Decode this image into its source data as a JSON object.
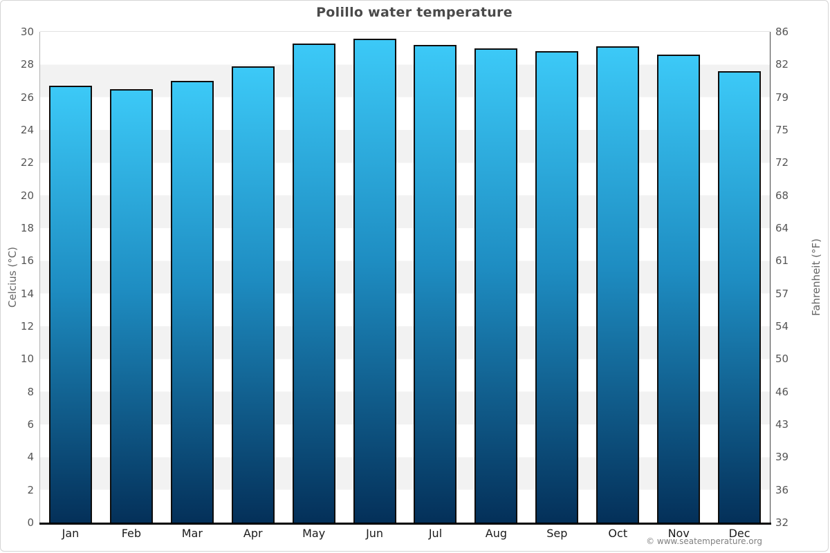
{
  "chart_data": {
    "type": "bar",
    "title": "Polillo water temperature",
    "xlabel": "",
    "ylabel_left": "Celcius (°C)",
    "ylabel_right": "Fahrenheit (°F)",
    "categories": [
      "Jan",
      "Feb",
      "Mar",
      "Apr",
      "May",
      "Jun",
      "Jul",
      "Aug",
      "Sep",
      "Oct",
      "Nov",
      "Dec"
    ],
    "values": [
      26.7,
      26.5,
      27.0,
      27.9,
      29.3,
      29.6,
      29.2,
      29.0,
      28.8,
      29.1,
      28.6,
      27.6
    ],
    "unit": "°C",
    "ylim": [
      0,
      30
    ],
    "celsius_ticks": [
      0,
      2,
      4,
      6,
      8,
      10,
      12,
      14,
      16,
      18,
      20,
      22,
      24,
      26,
      28,
      30
    ],
    "fahrenheit_ticks": [
      32,
      36,
      39,
      43,
      46,
      50,
      54,
      57,
      61,
      64,
      68,
      72,
      75,
      79,
      82,
      86
    ],
    "legend": "none",
    "grid": "alternating-horizontal-bands",
    "colors": {
      "bar_gradient_top": "#3cc9f7",
      "bar_gradient_mid": "#1e8dc2",
      "bar_gradient_bottom": "#043059",
      "bar_border": "#0d0d0d",
      "band_alt": "#f2f2f2",
      "band_main": "#ffffff",
      "background": "#ffffff",
      "title_color": "#4a4a4a"
    }
  },
  "footer": {
    "attribution": "© www.seatemperature.org"
  }
}
